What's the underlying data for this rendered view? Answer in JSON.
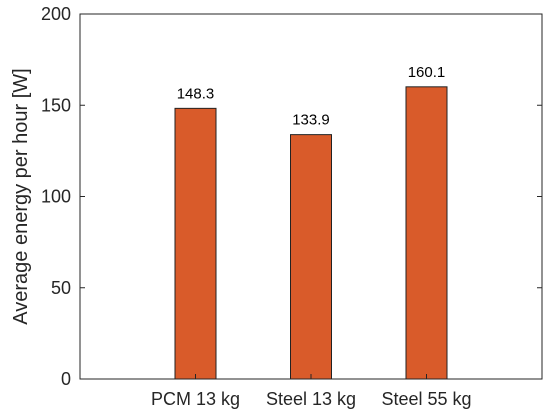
{
  "chart_data": {
    "type": "bar",
    "title": "",
    "xlabel": "",
    "ylabel": "Average energy per hour [W]",
    "categories": [
      "PCM 13 kg",
      "Steel 13 kg",
      "Steel 55 kg"
    ],
    "values": [
      148.3,
      133.9,
      160.1
    ],
    "data_labels": [
      "148.3",
      "133.9",
      "160.1"
    ],
    "ylim": [
      0,
      200
    ],
    "yticks": [
      0,
      50,
      100,
      150,
      200
    ],
    "ytick_labels": [
      "0",
      "50",
      "100",
      "150",
      "200"
    ],
    "grid": false,
    "legend": "none",
    "colors": {
      "bar_fill": "#D95B2A",
      "bar_edge": "#222222",
      "axis": "#262626"
    }
  }
}
